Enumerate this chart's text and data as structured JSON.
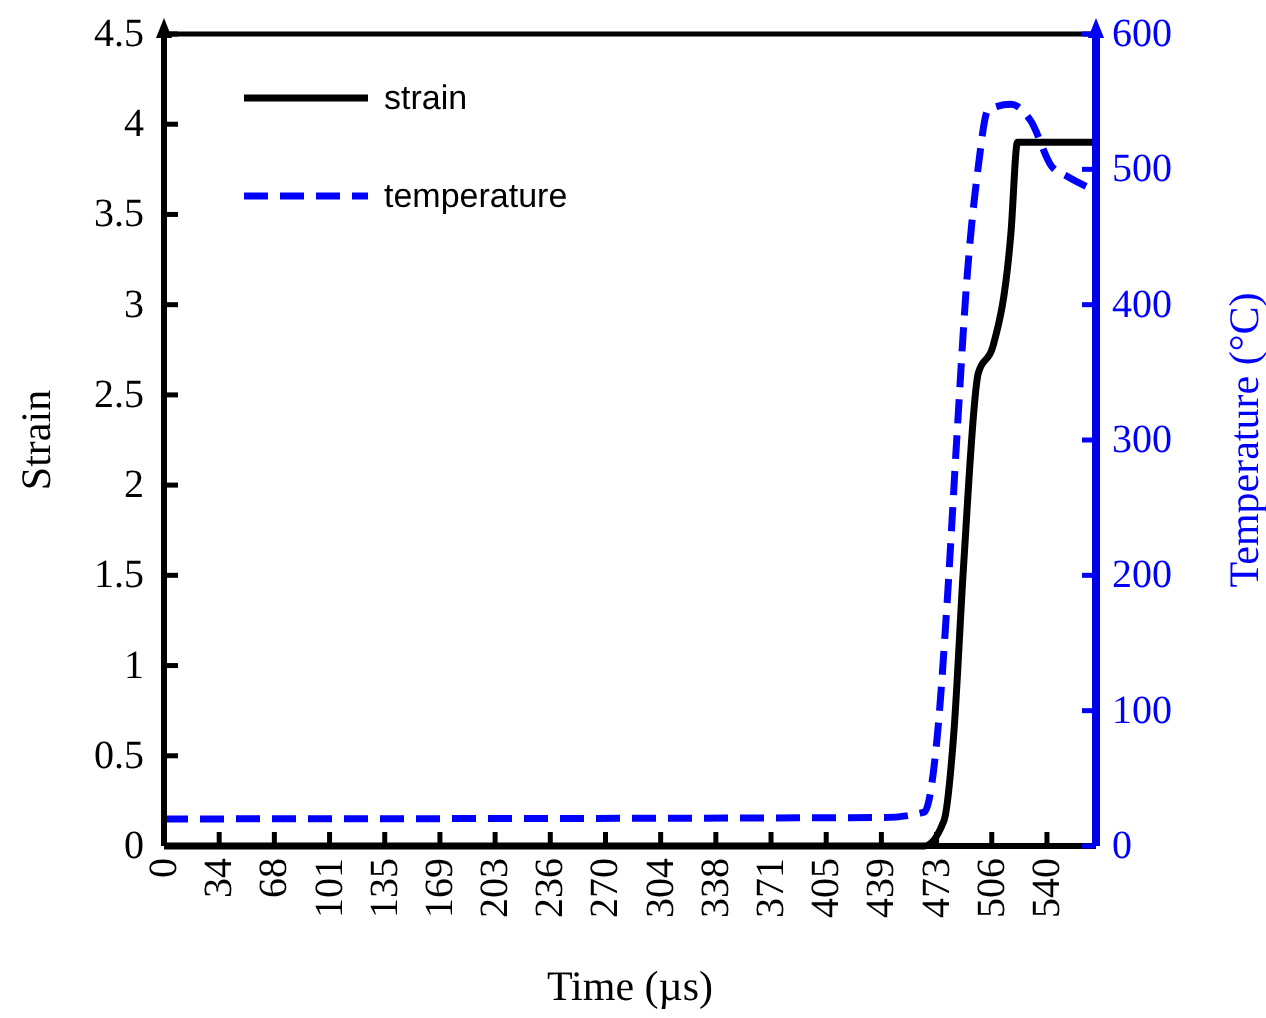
{
  "chart_data": {
    "type": "line",
    "xlabel": "Time (µs)",
    "ylabel": "Strain",
    "y2label": "Temperature (°C)",
    "xlim": [
      0,
      570
    ],
    "xticks": [
      0,
      {
        "value": 33.75,
        "label": "34"
      },
      {
        "value": 67.5,
        "label": "68"
      },
      {
        "value": 101.25,
        "label": "101"
      },
      135,
      {
        "value": 168.75,
        "label": "169"
      },
      {
        "value": 202.5,
        "label": "203"
      },
      {
        "value": 236.25,
        "label": "236"
      },
      270,
      {
        "value": 303.75,
        "label": "304"
      },
      {
        "value": 337.5,
        "label": "338"
      },
      {
        "value": 371.25,
        "label": "371"
      },
      405,
      {
        "value": 438.75,
        "label": "439"
      },
      {
        "value": 472.5,
        "label": "473"
      },
      {
        "value": 506.25,
        "label": "506"
      },
      540
    ],
    "ylim": [
      0,
      4.5
    ],
    "yticks": [
      0,
      0.5,
      1,
      1.5,
      2,
      2.5,
      3,
      3.5,
      4,
      4.5
    ],
    "y2lim": [
      0,
      600
    ],
    "y2ticks": [
      0,
      100,
      200,
      300,
      400,
      500,
      600
    ],
    "grid": false,
    "legend": "top left",
    "marker": "none",
    "series": [
      {
        "name": "strain",
        "color": "#000000",
        "line_style": "solid",
        "x": [
          0,
          465,
          477,
          483,
          489,
          498,
          507,
          518,
          522,
          568
        ],
        "values": [
          0,
          0,
          0.14,
          0.62,
          1.55,
          2.62,
          2.77,
          3.4,
          3.9,
          3.9
        ]
      },
      {
        "name": "temperature",
        "color": "#0000ff",
        "line_style": "dashed",
        "axis": "y2",
        "x": [
          0,
          440,
          465,
          473,
          479,
          485,
          491,
          498,
          504,
          518,
          530,
          543,
          552,
          568
        ],
        "values": [
          20,
          21,
          25,
          82,
          181,
          304,
          418,
          502,
          544,
          548,
          536,
          502,
          495,
          485
        ]
      }
    ]
  }
}
